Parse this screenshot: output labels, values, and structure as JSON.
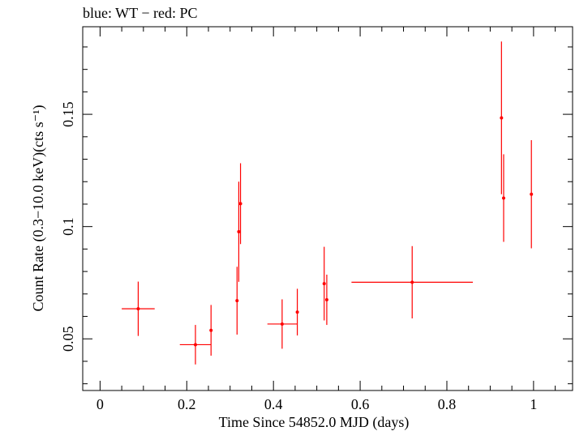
{
  "chart_data": {
    "type": "scatter",
    "title": "blue: WT − red: PC",
    "xlabel": "Time Since 54852.0 MJD (days)",
    "ylabel": "Count Rate (0.3−10.0 keV)(cts s⁻¹)",
    "xlim": [
      -0.04,
      1.09
    ],
    "ylim": [
      0.027,
      0.189
    ],
    "x_ticks": [
      {
        "value": 0,
        "label": "0"
      },
      {
        "value": 0.2,
        "label": "0.2"
      },
      {
        "value": 0.4,
        "label": "0.4"
      },
      {
        "value": 0.6,
        "label": "0.6"
      },
      {
        "value": 0.8,
        "label": "0.8"
      },
      {
        "value": 1.0,
        "label": "1"
      }
    ],
    "y_ticks": [
      {
        "value": 0.05,
        "label": "0.05"
      },
      {
        "value": 0.1,
        "label": "0.1"
      },
      {
        "value": 0.15,
        "label": "0.15"
      }
    ],
    "color": "#ff0000",
    "grid": false,
    "series": [
      {
        "name": "PC",
        "points": [
          {
            "x": 0.088,
            "xerr_lo": 0.038,
            "xerr_hi": 0.038,
            "y": 0.0634,
            "yerr_lo": 0.0121,
            "yerr_hi": 0.0121
          },
          {
            "x": 0.22,
            "xerr_lo": 0.036,
            "xerr_hi": 0.036,
            "y": 0.0474,
            "yerr_lo": 0.0088,
            "yerr_hi": 0.0088
          },
          {
            "x": 0.256,
            "xerr_lo": 0.002,
            "xerr_hi": 0.002,
            "y": 0.0538,
            "yerr_lo": 0.0113,
            "yerr_hi": 0.0113
          },
          {
            "x": 0.316,
            "xerr_lo": 0.001,
            "xerr_hi": 0.001,
            "y": 0.067,
            "yerr_lo": 0.0151,
            "yerr_hi": 0.0151
          },
          {
            "x": 0.32,
            "xerr_lo": 0.001,
            "xerr_hi": 0.001,
            "y": 0.0977,
            "yerr_lo": 0.0223,
            "yerr_hi": 0.0223
          },
          {
            "x": 0.324,
            "xerr_lo": 0.001,
            "xerr_hi": 0.001,
            "y": 0.1102,
            "yerr_lo": 0.018,
            "yerr_hi": 0.018
          },
          {
            "x": 0.42,
            "xerr_lo": 0.034,
            "xerr_hi": 0.034,
            "y": 0.0566,
            "yerr_lo": 0.011,
            "yerr_hi": 0.011
          },
          {
            "x": 0.455,
            "xerr_lo": 0.001,
            "xerr_hi": 0.001,
            "y": 0.0619,
            "yerr_lo": 0.0104,
            "yerr_hi": 0.0104
          },
          {
            "x": 0.517,
            "xerr_lo": 0.001,
            "xerr_hi": 0.001,
            "y": 0.0746,
            "yerr_lo": 0.0164,
            "yerr_hi": 0.0164
          },
          {
            "x": 0.523,
            "xerr_lo": 0.001,
            "xerr_hi": 0.001,
            "y": 0.0674,
            "yerr_lo": 0.0112,
            "yerr_hi": 0.0112
          },
          {
            "x": 0.72,
            "xerr_lo": 0.14,
            "xerr_hi": 0.14,
            "y": 0.0752,
            "yerr_lo": 0.0161,
            "yerr_hi": 0.0161
          },
          {
            "x": 0.926,
            "xerr_lo": 0.001,
            "xerr_hi": 0.001,
            "y": 0.1484,
            "yerr_lo": 0.034,
            "yerr_hi": 0.034
          },
          {
            "x": 0.931,
            "xerr_lo": 0.001,
            "xerr_hi": 0.001,
            "y": 0.1127,
            "yerr_lo": 0.0195,
            "yerr_hi": 0.0195
          },
          {
            "x": 0.995,
            "xerr_lo": 0.001,
            "xerr_hi": 0.001,
            "y": 0.1144,
            "yerr_lo": 0.0241,
            "yerr_hi": 0.0241
          }
        ]
      }
    ]
  }
}
